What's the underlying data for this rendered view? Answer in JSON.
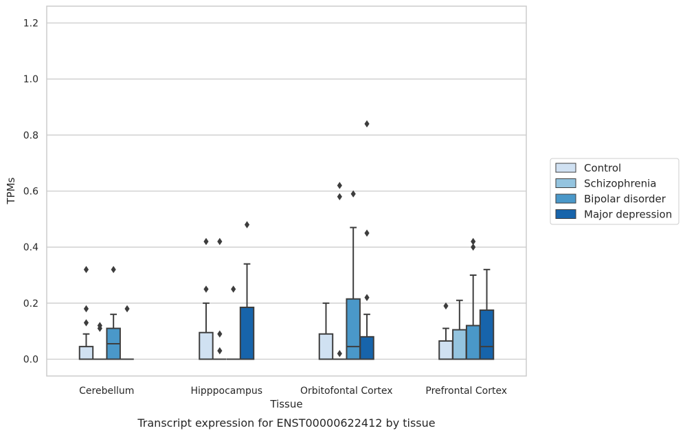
{
  "chart_data": {
    "type": "box",
    "xlabel": "Tissue",
    "ylabel": "TPMs",
    "caption": "Transcript expression for ENST00000622412 by tissue",
    "ylim": [
      -0.06,
      1.26
    ],
    "yticks": [
      0.0,
      0.2,
      0.4,
      0.6,
      0.8,
      1.0,
      1.2
    ],
    "ytick_labels": [
      "0.0",
      "0.2",
      "0.4",
      "0.6",
      "0.8",
      "1.0",
      "1.2"
    ],
    "grid": "horizontal",
    "legend_position": "right",
    "categories": [
      "Cerebellum",
      "Hipppocampus",
      "Orbitofontal Cortex",
      "Prefrontal Cortex"
    ],
    "series": [
      {
        "name": "Control",
        "color": "#d0e1f2",
        "boxes": [
          {
            "q1": 0.0,
            "median": 0.0,
            "q3": 0.045,
            "whisker_low": 0.0,
            "whisker_high": 0.09,
            "outliers": [
              0.13,
              0.18,
              0.32
            ]
          },
          {
            "q1": 0.0,
            "median": 0.0,
            "q3": 0.095,
            "whisker_low": 0.0,
            "whisker_high": 0.2,
            "outliers": [
              0.25,
              0.42
            ]
          },
          {
            "q1": 0.0,
            "median": 0.0,
            "q3": 0.09,
            "whisker_low": 0.0,
            "whisker_high": 0.2,
            "outliers": []
          },
          {
            "q1": 0.0,
            "median": 0.0,
            "q3": 0.065,
            "whisker_low": 0.0,
            "whisker_high": 0.11,
            "outliers": [
              0.19
            ]
          }
        ]
      },
      {
        "name": "Schizophrenia",
        "color": "#94c4df",
        "boxes": [
          {
            "q1": 0.0,
            "median": 0.0,
            "q3": 0.0,
            "whisker_low": 0.0,
            "whisker_high": 0.0,
            "outliers": [
              0.11,
              0.12
            ]
          },
          {
            "q1": 0.0,
            "median": 0.0,
            "q3": 0.0,
            "whisker_low": 0.0,
            "whisker_high": 0.0,
            "outliers": [
              0.03,
              0.09,
              0.42
            ]
          },
          {
            "q1": 0.0,
            "median": 0.0,
            "q3": 0.0,
            "whisker_low": 0.0,
            "whisker_high": 0.0,
            "outliers": [
              0.02,
              0.58,
              0.62
            ]
          },
          {
            "q1": 0.0,
            "median": 0.0,
            "q3": 0.105,
            "whisker_low": 0.0,
            "whisker_high": 0.21,
            "outliers": []
          }
        ]
      },
      {
        "name": "Bipolar disorder",
        "color": "#4a98c9",
        "boxes": [
          {
            "q1": 0.0,
            "median": 0.055,
            "q3": 0.11,
            "whisker_low": 0.0,
            "whisker_high": 0.16,
            "outliers": [
              0.32
            ]
          },
          {
            "q1": 0.0,
            "median": 0.0,
            "q3": 0.0,
            "whisker_low": 0.0,
            "whisker_high": 0.0,
            "outliers": [
              0.25
            ]
          },
          {
            "q1": 0.0,
            "median": 0.045,
            "q3": 0.215,
            "whisker_low": 0.0,
            "whisker_high": 0.47,
            "outliers": [
              0.59
            ]
          },
          {
            "q1": 0.0,
            "median": 0.0,
            "q3": 0.12,
            "whisker_low": 0.0,
            "whisker_high": 0.3,
            "outliers": [
              0.4,
              0.42
            ]
          }
        ]
      },
      {
        "name": "Major depression",
        "color": "#1764ab",
        "boxes": [
          {
            "q1": 0.0,
            "median": 0.0,
            "q3": 0.0,
            "whisker_low": 0.0,
            "whisker_high": 0.0,
            "outliers": [
              0.18
            ]
          },
          {
            "q1": 0.0,
            "median": 0.0,
            "q3": 0.185,
            "whisker_low": 0.0,
            "whisker_high": 0.34,
            "outliers": [
              0.48
            ]
          },
          {
            "q1": 0.0,
            "median": 0.0,
            "q3": 0.08,
            "whisker_low": 0.0,
            "whisker_high": 0.16,
            "outliers": [
              0.22,
              0.45,
              0.84
            ]
          },
          {
            "q1": 0.0,
            "median": 0.045,
            "q3": 0.175,
            "whisker_low": 0.0,
            "whisker_high": 0.32,
            "outliers": []
          }
        ]
      }
    ],
    "colors": {
      "grid": "#cccccc",
      "spine": "#cccccc",
      "line": "#3d3d3d",
      "text": "#262626",
      "legend_border": "#cccccc"
    }
  }
}
